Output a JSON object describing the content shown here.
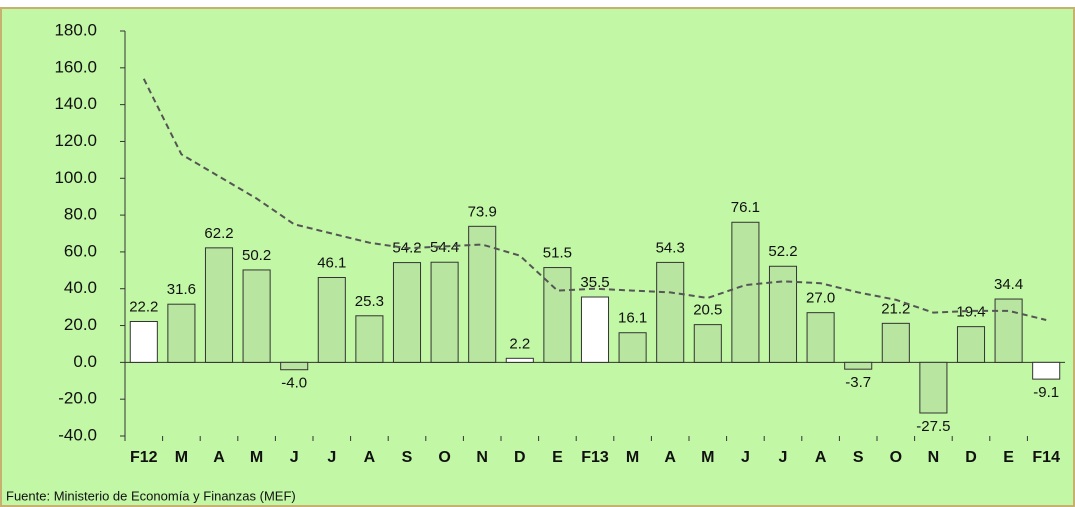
{
  "chart_data": {
    "type": "bar",
    "categories": [
      "F12",
      "M",
      "A",
      "M",
      "J",
      "J",
      "A",
      "S",
      "O",
      "N",
      "D",
      "E",
      "F13",
      "M",
      "A",
      "M",
      "J",
      "J",
      "A",
      "S",
      "O",
      "N",
      "D",
      "E",
      "F14"
    ],
    "values": [
      22.2,
      31.6,
      62.2,
      50.2,
      -4.0,
      46.1,
      25.3,
      54.2,
      54.4,
      73.9,
      2.2,
      51.5,
      35.5,
      16.1,
      54.3,
      20.5,
      76.1,
      52.2,
      27.0,
      -3.7,
      21.2,
      -27.5,
      19.4,
      34.4,
      -9.1
    ],
    "value_labels": [
      "22.2",
      "31.6",
      "62.2",
      "50.2",
      "-4.0",
      "46.1",
      "25.3",
      "54.2",
      "54.4",
      "73.9",
      "2.2",
      "51.5",
      "35.5",
      "16.1",
      "54.3",
      "20.5",
      "76.1",
      "52.2",
      "27.0",
      "-3.7",
      "21.2",
      "-27.5",
      "19.4",
      "34.4",
      "-9.1"
    ],
    "colors": [
      "#ffffff",
      "#b8e6a0",
      "#b8e6a0",
      "#b8e6a0",
      "#b8e6a0",
      "#b8e6a0",
      "#b8e6a0",
      "#b8e6a0",
      "#b8e6a0",
      "#b8e6a0",
      "#ffffff",
      "#b8e6a0",
      "#ffffff",
      "#b8e6a0",
      "#b8e6a0",
      "#b8e6a0",
      "#b8e6a0",
      "#b8e6a0",
      "#b8e6a0",
      "#b8e6a0",
      "#b8e6a0",
      "#b8e6a0",
      "#b8e6a0",
      "#b8e6a0",
      "#ffffff"
    ],
    "trend": {
      "color": "#555555",
      "values": [
        154,
        113,
        101,
        89,
        75,
        70,
        65,
        62,
        63,
        64,
        58,
        39,
        40,
        39,
        38,
        35,
        42,
        44,
        43,
        38,
        34,
        27,
        28,
        28,
        23
      ]
    },
    "ylim": [
      -40,
      180
    ],
    "yticks": [
      {
        "value": -40,
        "label": "-40.0"
      },
      {
        "value": -20,
        "label": "-20.0"
      },
      {
        "value": 0,
        "label": "0.0"
      },
      {
        "value": 20,
        "label": "20.0"
      },
      {
        "value": 40,
        "label": "40.0"
      },
      {
        "value": 60,
        "label": "60.0"
      },
      {
        "value": 80,
        "label": "80.0"
      },
      {
        "value": 100,
        "label": "100.0"
      },
      {
        "value": 120,
        "label": "120.0"
      },
      {
        "value": 140,
        "label": "140.0"
      },
      {
        "value": 160,
        "label": "160.0"
      },
      {
        "value": 180,
        "label": "180.0"
      }
    ],
    "source": "Fuente: Ministerio de Economía y Finanzas (MEF)"
  }
}
